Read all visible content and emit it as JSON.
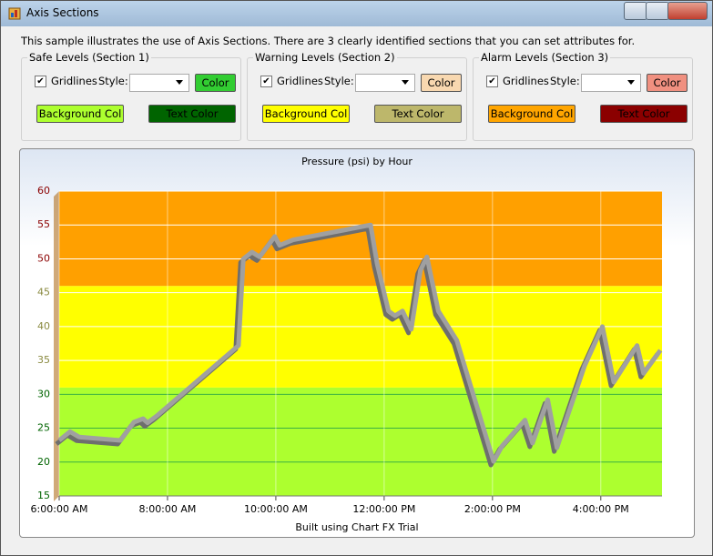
{
  "window": {
    "title": "Axis Sections"
  },
  "description": "This sample illustrates the use of Axis Sections. There are 3 clearly identified sections that you can set attributes for.",
  "groups": [
    {
      "title": "Safe Levels (Section 1)",
      "gridlines": "Gridlines",
      "checked": true,
      "style": "Style:",
      "color_button": "Color",
      "color": "#32cd32",
      "background_button": "Background Col",
      "background": "#adff2f",
      "text_button": "Text Color",
      "text_color": "#006400"
    },
    {
      "title": "Warning Levels (Section 2)",
      "gridlines": "Gridlines",
      "checked": true,
      "style": "Style:",
      "color_button": "Color",
      "color": "#f8d8b0",
      "background_button": "Background Col",
      "background": "#ffff00",
      "text_button": "Text Color",
      "text_color": "#bdb76b"
    },
    {
      "title": "Alarm Levels (Section 3)",
      "gridlines": "Gridlines",
      "checked": true,
      "style": "Style:",
      "color_button": "Color",
      "color": "#f09080",
      "background_button": "Background Col",
      "background": "#ffa500",
      "text_button": "Text Color",
      "text_color": "#8b0000"
    }
  ],
  "chart_data": {
    "type": "line",
    "title": "Pressure (psi) by Hour",
    "footer": "Built using Chart FX Trial",
    "x": [
      6.0,
      6.2,
      6.37,
      7.13,
      7.38,
      7.55,
      7.63,
      7.8,
      9.31,
      9.4,
      9.56,
      9.7,
      9.98,
      10.07,
      10.32,
      11.75,
      11.87,
      12.08,
      12.2,
      12.34,
      12.5,
      12.67,
      12.79,
      13.0,
      13.34,
      14.02,
      14.18,
      14.6,
      14.74,
      15.02,
      15.19,
      15.36,
      15.7,
      16.03,
      16.24,
      16.67,
      16.79,
      17.1
    ],
    "series": [
      {
        "color": "#a0a0a0",
        "values": [
          23.2,
          24.5,
          23.7,
          23.2,
          25.9,
          26.4,
          25.8,
          26.8,
          37.2,
          50,
          51,
          50.3,
          53.3,
          52,
          52.8,
          55,
          49.3,
          42.3,
          41.6,
          42.3,
          39.6,
          48.3,
          50.3,
          42.3,
          38,
          20.1,
          22.4,
          26.2,
          22.8,
          29.2,
          22.1,
          26.2,
          34.2,
          40,
          31.8,
          37.2,
          33.1,
          36.5
        ]
      }
    ],
    "xlim": [
      6,
      17.13
    ],
    "ylim": [
      15,
      60
    ],
    "xticks": [
      {
        "value": 6,
        "label": "6:00:00 AM"
      },
      {
        "value": 8,
        "label": "8:00:00 AM"
      },
      {
        "value": 10,
        "label": "10:00:00 AM"
      },
      {
        "value": 12,
        "label": "12:00:00 PM"
      },
      {
        "value": 14,
        "label": "2:00:00 PM"
      },
      {
        "value": 16,
        "label": "4:00:00 PM"
      }
    ],
    "yticks": [
      15,
      20,
      25,
      30,
      35,
      40,
      45,
      50,
      55,
      60
    ],
    "sections": [
      {
        "from": 15,
        "to": 31,
        "color": "#adff2f",
        "text_color": "#006400",
        "grid_color": "#3cb043"
      },
      {
        "from": 31,
        "to": 46,
        "color": "#ffff00",
        "text_color": "#8a8a40",
        "grid_color": "#ffffff"
      },
      {
        "from": 46,
        "to": 60,
        "color": "#ffa000",
        "text_color": "#8b0000",
        "grid_color": "#ffffff"
      }
    ],
    "grid": true
  }
}
